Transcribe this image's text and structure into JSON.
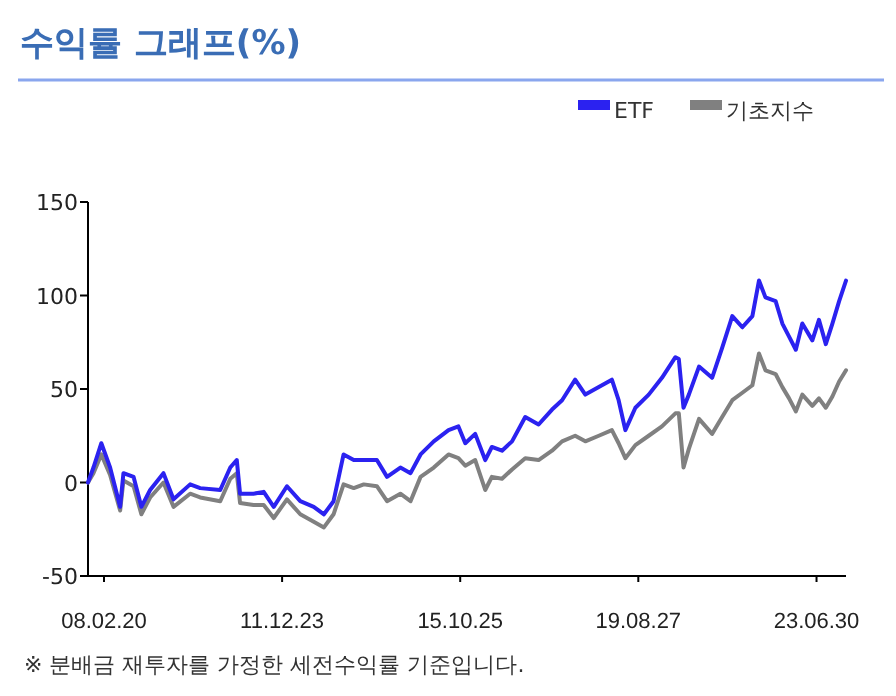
{
  "chart_data": {
    "type": "line",
    "title": "수익률 그래프(%)",
    "legend": "top right",
    "x": [
      "2007-10-17",
      "2007-11-29",
      "2008-01-30",
      "2008-04-08",
      "2008-06-26",
      "2008-07-22",
      "2008-10-10",
      "2008-12-10",
      "2009-02-17",
      "2009-06-02",
      "2009-08-20",
      "2009-12-29",
      "2010-03-18",
      "2010-08-23",
      "2010-11-10",
      "2010-12-31",
      "2011-01-26",
      "2011-05-12",
      "2011-07-31",
      "2011-10-18",
      "2012-01-30",
      "2012-05-14",
      "2012-08-28",
      "2012-11-16",
      "2013-01-31",
      "2013-04-20",
      "2013-07-09",
      "2013-09-26",
      "2014-01-07",
      "2014-03-28",
      "2014-07-11",
      "2014-09-29",
      "2014-12-17",
      "2015-03-31",
      "2015-07-25",
      "2015-10-11",
      "2015-12-04",
      "2016-02-20",
      "2016-05-09",
      "2016-06-30",
      "2016-09-18",
      "2016-12-06",
      "2017-03-20",
      "2017-07-03",
      "2017-10-17",
      "2018-01-04",
      "2018-04-17",
      "2018-07-06",
      "2018-10-20",
      "2019-01-31",
      "2019-03-25",
      "2019-05-17",
      "2019-08-04",
      "2019-11-17",
      "2020-02-29",
      "2020-06-14",
      "2020-07-11",
      "2020-08-17",
      "2020-09-28",
      "2020-12-17",
      "2021-03-30",
      "2021-06-17",
      "2021-09-05",
      "2021-11-23",
      "2022-02-10",
      "2022-04-03",
      "2022-05-24",
      "2022-08-12",
      "2022-10-04",
      "2022-11-26",
      "2023-01-18",
      "2023-03-10",
      "2023-05-28",
      "2023-07-19",
      "2023-09-11",
      "2023-11-02",
      "2023-12-25",
      "2024-02-17"
    ],
    "series": [
      {
        "name": "ETF",
        "color": "#2b22f0",
        "values": [
          0,
          8,
          21,
          8,
          -13,
          5,
          3,
          -13,
          -4,
          5,
          -9,
          -1,
          -3,
          -4,
          8,
          12,
          -6,
          -6,
          -5,
          -13,
          -2,
          -10,
          -13,
          -17,
          -10,
          15,
          12,
          12,
          12,
          3,
          8,
          5,
          15,
          22,
          28,
          30,
          21,
          26,
          12,
          19,
          17,
          22,
          35,
          31,
          39,
          44,
          55,
          47,
          51,
          55,
          44,
          28,
          40,
          47,
          56,
          67,
          66,
          40,
          47,
          62,
          56,
          72,
          89,
          83,
          89,
          108,
          99,
          97,
          85,
          78,
          71,
          85,
          76,
          87,
          74,
          85,
          97,
          108
        ]
      },
      {
        "name": "기초지수",
        "color": "#808080",
        "values": [
          0,
          5,
          15,
          4,
          -15,
          1,
          -2,
          -17,
          -8,
          0,
          -13,
          -6,
          -8,
          -10,
          2,
          5,
          -11,
          -12,
          -12,
          -19,
          -9,
          -17,
          -21,
          -24,
          -17,
          -1,
          -3,
          -1,
          -2,
          -10,
          -6,
          -10,
          3,
          8,
          15,
          13,
          9,
          12,
          -4,
          3,
          2,
          7,
          13,
          12,
          17,
          22,
          25,
          22,
          25,
          28,
          21,
          13,
          20,
          25,
          30,
          37,
          37,
          8,
          18,
          34,
          26,
          35,
          44,
          48,
          52,
          69,
          60,
          58,
          51,
          45,
          38,
          47,
          41,
          45,
          40,
          46,
          54,
          60
        ]
      }
    ],
    "xlim": [
      "2007-10-17",
      "2024-02-17"
    ],
    "xticks": [
      {
        "value": "2008-02-20",
        "label": "08.02.20"
      },
      {
        "value": "2011-12-23",
        "label": "11.12.23"
      },
      {
        "value": "2015-10-25",
        "label": "15.10.25"
      },
      {
        "value": "2019-08-27",
        "label": "19.08.27"
      },
      {
        "value": "2023-06-30",
        "label": "23.06.30"
      }
    ],
    "ylim": [
      -50,
      150
    ],
    "yticks": [
      -50,
      0,
      50,
      100,
      150
    ],
    "annotations": [
      "※ 분배금 재투자를 가정한 세전수익률 기준입니다."
    ]
  }
}
